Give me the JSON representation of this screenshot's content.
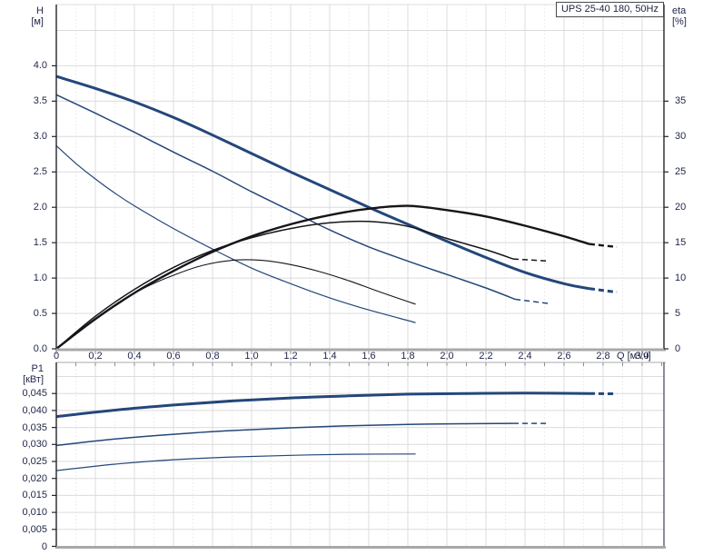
{
  "title_box": {
    "label": "UPS 25-40 180, 50Hz"
  },
  "axes": {
    "h_name": "H",
    "h_unit": "[м]",
    "eta_name": "eta",
    "eta_unit": "[%]",
    "p1_name": "P1",
    "p1_unit": "[кВт]",
    "q_label": "Q [м³/ч]"
  },
  "colors": {
    "curve_blue": "#24477a",
    "curve_black": "#15151a",
    "grid": "#dcdcdc",
    "grid_minor": "#e8e8e8",
    "axis_dark": "#24242e",
    "axis_gray": "#a8a8a8",
    "tick_gray": "#8f8f8f",
    "text": "#23284a",
    "bottom_right_axis": "#3c3c64"
  },
  "chart_data": [
    {
      "id": "hq-chart",
      "type": "line",
      "title": "UPS 25-40 180, 50Hz",
      "xlabel": "Q [м³/ч]",
      "ylabel_left": "H [м]",
      "ylabel_right": "eta [%]",
      "xlim": [
        0,
        3.11
      ],
      "ylim_left": [
        0,
        4.87
      ],
      "ylim_right": [
        0,
        48.7
      ],
      "grid": true,
      "legend": false,
      "x_ticks": [
        0,
        0.2,
        0.4,
        0.6,
        0.8,
        1.0,
        1.2,
        1.4,
        1.6,
        1.8,
        2.0,
        2.2,
        2.4,
        2.6,
        2.8,
        3.0
      ],
      "x_tick_labels": [
        "0",
        "0,2",
        "0,4",
        "0,6",
        "0,8",
        "1,0",
        "1,2",
        "1,4",
        "1,6",
        "1,8",
        "2,0",
        "2,2",
        "2,4",
        "2,6",
        "2,8",
        "3,0"
      ],
      "y_ticks_left": [
        0,
        0.5,
        1,
        1.5,
        2,
        2.5,
        3,
        3.5,
        4
      ],
      "y_tick_labels_left": [
        "0.0",
        "0.5",
        "1.0",
        "1.5",
        "2.0",
        "2.5",
        "3.0",
        "3.5",
        "4.0"
      ],
      "y_ticks_right": [
        0,
        5,
        10,
        15,
        20,
        25,
        30,
        35
      ],
      "y_tick_labels_right": [
        "0",
        "5",
        "10",
        "15",
        "20",
        "25",
        "30",
        "35"
      ],
      "series": [
        {
          "name": "head-curve-speed3",
          "axis": "left",
          "width": 3,
          "color_key": "curve_blue",
          "points": [
            [
              0,
              3.85
            ],
            [
              0.2,
              3.68
            ],
            [
              0.4,
              3.49
            ],
            [
              0.6,
              3.27
            ],
            [
              0.8,
              3.02
            ],
            [
              1,
              2.76
            ],
            [
              1.2,
              2.5
            ],
            [
              1.4,
              2.25
            ],
            [
              1.6,
              2.0
            ],
            [
              1.8,
              1.76
            ],
            [
              2,
              1.52
            ],
            [
              2.2,
              1.29
            ],
            [
              2.4,
              1.08
            ],
            [
              2.6,
              0.92
            ],
            [
              2.73,
              0.85
            ]
          ],
          "dashed_tail": [
            [
              2.73,
              0.85
            ],
            [
              2.87,
              0.8
            ]
          ]
        },
        {
          "name": "head-curve-speed2",
          "axis": "left",
          "width": 1.5,
          "color_key": "curve_blue",
          "points": [
            [
              0,
              3.59
            ],
            [
              0.2,
              3.33
            ],
            [
              0.4,
              3.06
            ],
            [
              0.6,
              2.78
            ],
            [
              0.8,
              2.51
            ],
            [
              1,
              2.22
            ],
            [
              1.2,
              1.95
            ],
            [
              1.4,
              1.68
            ],
            [
              1.6,
              1.44
            ],
            [
              1.8,
              1.24
            ],
            [
              2,
              1.05
            ],
            [
              2.2,
              0.86
            ],
            [
              2.35,
              0.7
            ]
          ],
          "dashed_tail": [
            [
              2.35,
              0.7
            ],
            [
              2.52,
              0.64
            ]
          ]
        },
        {
          "name": "head-curve-speed1",
          "axis": "left",
          "width": 1.2,
          "color_key": "curve_blue",
          "points": [
            [
              0,
              2.87
            ],
            [
              0.1,
              2.62
            ],
            [
              0.2,
              2.4
            ],
            [
              0.3,
              2.2
            ],
            [
              0.4,
              2.02
            ],
            [
              0.6,
              1.7
            ],
            [
              0.8,
              1.41
            ],
            [
              1,
              1.14
            ],
            [
              1.2,
              0.92
            ],
            [
              1.4,
              0.72
            ],
            [
              1.6,
              0.55
            ],
            [
              1.84,
              0.37
            ]
          ],
          "dashed_tail": []
        },
        {
          "name": "eta-curve-speed3",
          "axis": "right",
          "width": 2.4,
          "color_key": "curve_black",
          "points": [
            [
              0,
              0
            ],
            [
              0.2,
              4.2
            ],
            [
              0.4,
              7.9
            ],
            [
              0.6,
              11
            ],
            [
              0.8,
              13.7
            ],
            [
              1,
              15.9
            ],
            [
              1.2,
              17.6
            ],
            [
              1.4,
              18.9
            ],
            [
              1.6,
              19.8
            ],
            [
              1.8,
              20.2
            ],
            [
              2,
              19.6
            ],
            [
              2.2,
              18.7
            ],
            [
              2.4,
              17.4
            ],
            [
              2.6,
              15.9
            ],
            [
              2.73,
              14.8
            ]
          ],
          "dashed_tail": [
            [
              2.73,
              14.8
            ],
            [
              2.87,
              14.4
            ]
          ]
        },
        {
          "name": "eta-curve-speed2",
          "axis": "right",
          "width": 1.5,
          "color_key": "curve_black",
          "points": [
            [
              0,
              0
            ],
            [
              0.2,
              4.6
            ],
            [
              0.4,
              8.4
            ],
            [
              0.6,
              11.5
            ],
            [
              0.8,
              13.9
            ],
            [
              1,
              15.7
            ],
            [
              1.2,
              17
            ],
            [
              1.4,
              17.8
            ],
            [
              1.6,
              18
            ],
            [
              1.8,
              17.3
            ],
            [
              2,
              15.6
            ],
            [
              2.2,
              14
            ],
            [
              2.34,
              12.7
            ]
          ],
          "dashed_tail": [
            [
              2.34,
              12.7
            ],
            [
              2.52,
              12.4
            ]
          ]
        },
        {
          "name": "eta-curve-speed1",
          "axis": "right",
          "width": 1.1,
          "color_key": "curve_black",
          "points": [
            [
              0,
              0
            ],
            [
              0.15,
              3.3
            ],
            [
              0.3,
              6.2
            ],
            [
              0.45,
              8.6
            ],
            [
              0.6,
              10.4
            ],
            [
              0.75,
              11.8
            ],
            [
              0.9,
              12.5
            ],
            [
              1.05,
              12.5
            ],
            [
              1.2,
              11.9
            ],
            [
              1.35,
              10.9
            ],
            [
              1.5,
              9.6
            ],
            [
              1.65,
              8.1
            ],
            [
              1.84,
              6.3
            ]
          ],
          "dashed_tail": []
        }
      ]
    },
    {
      "id": "p1q-chart",
      "type": "line",
      "title": "",
      "xlabel": "",
      "ylabel_left": "P1 [кВт]",
      "xlim": [
        0,
        3.11
      ],
      "ylim_left": [
        0,
        0.0541
      ],
      "grid": true,
      "legend": false,
      "x_ticks": [
        0,
        0.2,
        0.4,
        0.6,
        0.8,
        1.0,
        1.2,
        1.4,
        1.6,
        1.8,
        2.0,
        2.2,
        2.4,
        2.6,
        2.8,
        3.0
      ],
      "x_tick_labels": [],
      "y_ticks_left": [
        0,
        0.005,
        0.01,
        0.015,
        0.02,
        0.025,
        0.03,
        0.035,
        0.04,
        0.045
      ],
      "y_tick_labels_left": [
        "0",
        "0,005",
        "0,010",
        "0,015",
        "0,020",
        "0,025",
        "0,030",
        "0,035",
        "0,040",
        "0,045"
      ],
      "series": [
        {
          "name": "power-curve-speed3",
          "axis": "left",
          "width": 3,
          "color_key": "curve_blue",
          "points": [
            [
              0,
              0.0382
            ],
            [
              0.3,
              0.0401
            ],
            [
              0.6,
              0.0416
            ],
            [
              0.9,
              0.0428
            ],
            [
              1.2,
              0.0437
            ],
            [
              1.5,
              0.0443
            ],
            [
              1.8,
              0.0448
            ],
            [
              2.1,
              0.045
            ],
            [
              2.4,
              0.0451
            ],
            [
              2.73,
              0.045
            ]
          ],
          "dashed_tail": [
            [
              2.73,
              0.045
            ],
            [
              2.87,
              0.0449
            ]
          ]
        },
        {
          "name": "power-curve-speed2",
          "axis": "left",
          "width": 1.5,
          "color_key": "curve_blue",
          "points": [
            [
              0,
              0.0297
            ],
            [
              0.3,
              0.0316
            ],
            [
              0.6,
              0.033
            ],
            [
              0.9,
              0.0341
            ],
            [
              1.2,
              0.0349
            ],
            [
              1.5,
              0.0355
            ],
            [
              1.8,
              0.0359
            ],
            [
              2.1,
              0.0361
            ],
            [
              2.34,
              0.0362
            ]
          ],
          "dashed_tail": [
            [
              2.34,
              0.0362
            ],
            [
              2.52,
              0.0362
            ]
          ]
        },
        {
          "name": "power-curve-speed1",
          "axis": "left",
          "width": 1.2,
          "color_key": "curve_blue",
          "points": [
            [
              0,
              0.0223
            ],
            [
              0.3,
              0.0242
            ],
            [
              0.6,
              0.0255
            ],
            [
              0.9,
              0.0263
            ],
            [
              1.2,
              0.0268
            ],
            [
              1.5,
              0.0271
            ],
            [
              1.84,
              0.0272
            ]
          ],
          "dashed_tail": []
        }
      ]
    }
  ]
}
